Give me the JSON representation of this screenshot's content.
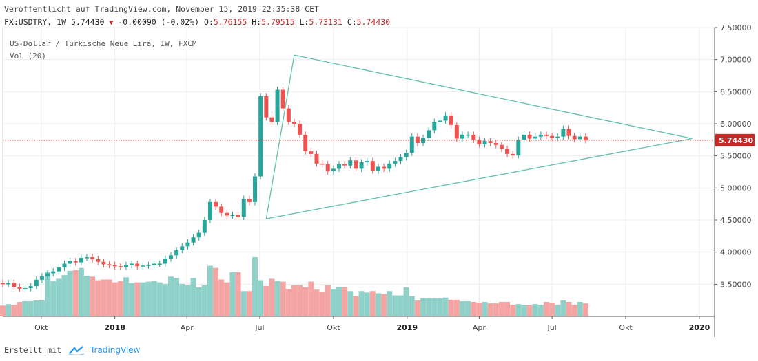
{
  "header": {
    "published": "Veröffentlicht auf TradingView.com, November 15, 2019 22:35:38 CET",
    "symbol": "FX:USDTRY, 1W",
    "last": "5.74430",
    "change": "-0.00090 (-0.02%)",
    "o_label": "O:",
    "o_value": "5.76155",
    "h_label": "H:",
    "h_value": "5.79515",
    "l_label": "L:",
    "l_value": "5.73131",
    "c_label": "C:",
    "c_value": "5.74430"
  },
  "footer": {
    "created_with": "Erstellt mit",
    "brand": "TradingView"
  },
  "colors": {
    "up": "#26a69a",
    "down": "#ef5350",
    "up_vol": "#8fd0c9",
    "down_vol": "#f4a5a3",
    "triangle": "#5fbfae",
    "price_line": "#e53935",
    "price_tag": "#c62828"
  },
  "chart_data": {
    "type": "candlestick",
    "title": "US-Dollar / Türkische Neue Lira, 1W, FXCM",
    "volume_label": "Vol (20)",
    "y_ticks": [
      "7.50000",
      "7.00000",
      "6.50000",
      "6.00000",
      "5.50000",
      "5.00000",
      "4.50000",
      "4.00000",
      "3.50000"
    ],
    "y_range": [
      3.0,
      7.5
    ],
    "x_ticks": [
      {
        "label": "Okt",
        "date": "2017-10-01",
        "bold": false
      },
      {
        "label": "2018",
        "date": "2018-01-01",
        "bold": true
      },
      {
        "label": "Apr",
        "date": "2018-04-01",
        "bold": false
      },
      {
        "label": "Jul",
        "date": "2018-07-01",
        "bold": false
      },
      {
        "label": "Okt",
        "date": "2018-10-01",
        "bold": false
      },
      {
        "label": "2019",
        "date": "2019-01-01",
        "bold": true
      },
      {
        "label": "Apr",
        "date": "2019-04-01",
        "bold": false
      },
      {
        "label": "Jul",
        "date": "2019-07-01",
        "bold": false
      },
      {
        "label": "Okt",
        "date": "2019-10-01",
        "bold": false
      },
      {
        "label": "2020",
        "date": "2020-01-01",
        "bold": true
      }
    ],
    "x_range": [
      "2017-08-14",
      "2020-01-20"
    ],
    "current_price": 5.7443,
    "current_price_label": "5.74430",
    "first_week": "2017-08-14",
    "close": [
      3.5,
      3.52,
      3.46,
      3.43,
      3.44,
      3.47,
      3.57,
      3.62,
      3.67,
      3.7,
      3.76,
      3.82,
      3.86,
      3.84,
      3.91,
      3.92,
      3.89,
      3.85,
      3.81,
      3.8,
      3.78,
      3.77,
      3.8,
      3.82,
      3.78,
      3.79,
      3.8,
      3.82,
      3.82,
      3.9,
      3.95,
      4.03,
      4.09,
      4.15,
      4.23,
      4.3,
      4.5,
      4.78,
      4.71,
      4.61,
      4.57,
      4.58,
      4.55,
      4.83,
      4.78,
      5.18,
      6.43,
      6.1,
      6.03,
      6.53,
      6.24,
      6.03,
      6.0,
      5.83,
      5.57,
      5.53,
      5.38,
      5.37,
      5.26,
      5.3,
      5.37,
      5.35,
      5.43,
      5.3,
      5.4,
      5.42,
      5.27,
      5.33,
      5.3,
      5.38,
      5.42,
      5.48,
      5.55,
      5.8,
      5.7,
      5.78,
      5.9,
      6.03,
      6.05,
      6.13,
      5.98,
      5.77,
      5.83,
      5.83,
      5.75,
      5.68,
      5.73,
      5.7,
      5.67,
      5.61,
      5.53,
      5.51,
      5.75,
      5.83,
      5.77,
      5.8,
      5.83,
      5.81,
      5.78,
      5.8,
      5.92,
      5.81,
      5.76,
      5.8,
      5.7443
    ],
    "volume_scale": [
      0,
      100
    ],
    "volume": [
      15,
      17,
      16,
      20,
      21,
      21,
      22,
      22,
      62,
      49,
      52,
      57,
      63,
      64,
      67,
      56,
      55,
      50,
      51,
      51,
      47,
      49,
      54,
      46,
      47,
      47,
      48,
      49,
      47,
      45,
      55,
      53,
      45,
      43,
      53,
      40,
      43,
      70,
      67,
      51,
      47,
      61,
      61,
      35,
      35,
      82,
      50,
      42,
      52,
      49,
      48,
      38,
      43,
      43,
      40,
      48,
      37,
      34,
      43,
      38,
      41,
      40,
      35,
      28,
      35,
      33,
      35,
      32,
      31,
      35,
      29,
      29,
      40,
      28,
      22,
      25,
      25,
      25,
      25,
      26,
      23,
      23,
      21,
      21,
      20,
      19,
      20,
      18,
      18,
      20,
      20,
      16,
      17,
      16,
      16,
      17,
      16,
      20,
      19,
      16,
      22,
      20,
      16,
      20,
      18
    ]
  }
}
